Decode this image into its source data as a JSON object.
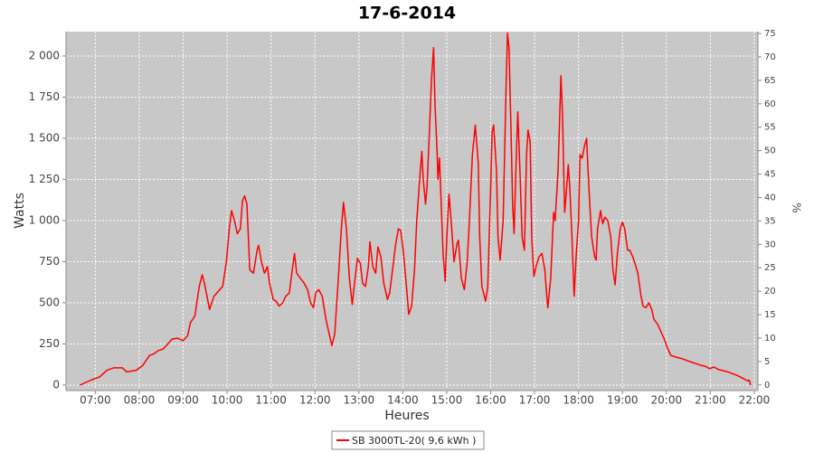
{
  "chart_data": {
    "type": "line",
    "title": "17-6-2014",
    "x_label": "Heures",
    "y_label": "Watts",
    "y2_label": "%",
    "x": [
      "06:39",
      "06:54",
      "07:06",
      "07:16",
      "07:25",
      "07:37",
      "07:43",
      "07:56",
      "08:05",
      "08:14",
      "08:20",
      "08:26",
      "08:33",
      "08:39",
      "08:45",
      "08:52",
      "09:00",
      "09:06",
      "09:10",
      "09:16",
      "09:22",
      "09:26",
      "09:29",
      "09:36",
      "09:42",
      "09:48",
      "09:54",
      "09:59",
      "10:03",
      "10:06",
      "10:10",
      "10:14",
      "10:18",
      "10:21",
      "10:24",
      "10:27",
      "10:31",
      "10:36",
      "10:41",
      "10:43",
      "10:47",
      "10:51",
      "10:55",
      "10:58",
      "11:03",
      "11:07",
      "11:11",
      "11:16",
      "11:20",
      "11:25",
      "11:29",
      "11:32",
      "11:35",
      "11:40",
      "11:45",
      "11:50",
      "11:54",
      "11:58",
      "12:01",
      "12:05",
      "12:10",
      "12:15",
      "12:20",
      "12:23",
      "12:27",
      "12:32",
      "12:36",
      "12:39",
      "12:43",
      "12:47",
      "12:51",
      "12:54",
      "12:58",
      "13:02",
      "13:05",
      "13:09",
      "13:13",
      "13:15",
      "13:19",
      "13:23",
      "13:26",
      "13:30",
      "13:34",
      "13:39",
      "13:42",
      "13:46",
      "13:50",
      "13:54",
      "13:57",
      "14:01",
      "14:05",
      "14:08",
      "14:12",
      "14:16",
      "14:19",
      "14:23",
      "14:26",
      "14:28",
      "14:31",
      "14:33",
      "14:36",
      "14:39",
      "14:42",
      "14:44",
      "14:47",
      "14:48",
      "14:50",
      "14:52",
      "14:55",
      "14:58",
      "15:00",
      "15:03",
      "15:06",
      "15:10",
      "15:14",
      "15:16",
      "15:20",
      "15:24",
      "15:28",
      "15:31",
      "15:35",
      "15:39",
      "15:43",
      "15:45",
      "15:48",
      "15:53",
      "15:56",
      "16:00",
      "16:02",
      "16:04",
      "16:08",
      "16:10",
      "16:13",
      "16:17",
      "16:21",
      "16:23",
      "16:25",
      "16:28",
      "16:30",
      "16:32",
      "16:35",
      "16:37",
      "16:40",
      "16:43",
      "16:46",
      "16:49",
      "16:51",
      "16:54",
      "16:56",
      "16:59",
      "17:02",
      "17:06",
      "17:10",
      "17:14",
      "17:16",
      "17:18",
      "17:22",
      "17:26",
      "17:28",
      "17:32",
      "17:36",
      "17:38",
      "17:41",
      "17:43",
      "17:46",
      "17:48",
      "17:51",
      "17:54",
      "17:57",
      "18:00",
      "18:02",
      "18:05",
      "18:08",
      "18:11",
      "18:13",
      "18:16",
      "18:18",
      "18:22",
      "18:24",
      "18:26",
      "18:30",
      "18:33",
      "18:36",
      "18:40",
      "18:44",
      "18:47",
      "18:50",
      "18:53",
      "18:57",
      "19:00",
      "19:03",
      "19:07",
      "19:10",
      "19:14",
      "19:17",
      "19:21",
      "19:25",
      "19:28",
      "19:32",
      "19:36",
      "19:40",
      "19:43",
      "19:48",
      "19:53",
      "19:57",
      "20:01",
      "20:06",
      "20:13",
      "20:22",
      "20:34",
      "20:47",
      "20:53",
      "20:59",
      "21:05",
      "21:11",
      "21:24",
      "21:36",
      "21:45",
      "21:51",
      "21:53",
      "21:55"
    ],
    "series": [
      {
        "name": "SB 3000TL-20( 9,6 kWh )",
        "color": "#ff0000",
        "values": [
          0,
          30,
          50,
          90,
          105,
          105,
          80,
          90,
          120,
          180,
          190,
          210,
          220,
          250,
          280,
          285,
          270,
          300,
          380,
          420,
          600,
          670,
          620,
          460,
          540,
          570,
          600,
          750,
          950,
          1060,
          1000,
          920,
          950,
          1120,
          1150,
          1100,
          700,
          680,
          820,
          850,
          750,
          680,
          720,
          620,
          520,
          510,
          480,
          500,
          540,
          560,
          700,
          800,
          680,
          650,
          620,
          580,
          500,
          470,
          560,
          580,
          540,
          400,
          300,
          240,
          310,
          650,
          950,
          1110,
          950,
          650,
          490,
          620,
          770,
          740,
          620,
          600,
          720,
          870,
          720,
          680,
          840,
          780,
          620,
          520,
          560,
          700,
          850,
          950,
          940,
          800,
          600,
          430,
          480,
          700,
          1000,
          1250,
          1420,
          1250,
          1100,
          1200,
          1500,
          1850,
          2050,
          1700,
          1400,
          1250,
          1380,
          1150,
          800,
          630,
          900,
          1160,
          1000,
          750,
          860,
          880,
          650,
          580,
          750,
          1000,
          1400,
          1580,
          1350,
          900,
          600,
          510,
          600,
          1200,
          1540,
          1580,
          1300,
          900,
          760,
          1000,
          1800,
          2140,
          2050,
          1500,
          1100,
          920,
          1400,
          1660,
          1300,
          900,
          820,
          1400,
          1550,
          1480,
          900,
          660,
          720,
          780,
          800,
          700,
          580,
          470,
          650,
          1050,
          1000,
          1300,
          1880,
          1650,
          1050,
          1150,
          1340,
          1200,
          900,
          540,
          800,
          1000,
          1400,
          1380,
          1450,
          1500,
          1300,
          1050,
          900,
          780,
          760,
          950,
          1060,
          980,
          1020,
          1000,
          900,
          700,
          610,
          800,
          950,
          990,
          950,
          820,
          820,
          780,
          740,
          680,
          550,
          480,
          470,
          500,
          460,
          400,
          370,
          320,
          280,
          230,
          180,
          170,
          160,
          140,
          120,
          115,
          100,
          110,
          95,
          80,
          60,
          40,
          25,
          30,
          0
        ]
      }
    ],
    "xlim": [
      "06:20",
      "22:05"
    ],
    "xticks": [
      "07:00",
      "08:00",
      "09:00",
      "10:00",
      "11:00",
      "12:00",
      "13:00",
      "14:00",
      "15:00",
      "16:00",
      "17:00",
      "18:00",
      "19:00",
      "20:00",
      "21:00",
      "22:00"
    ],
    "ylim": [
      -33,
      2148
    ],
    "yticks": [
      0,
      250,
      500,
      750,
      {
        "value": 1000,
        "label": "1 000"
      },
      {
        "value": 1250,
        "label": "1 250"
      },
      {
        "value": 1500,
        "label": "1 500"
      },
      {
        "value": 1750,
        "label": "1 750"
      },
      {
        "value": 2000,
        "label": "2 000"
      }
    ],
    "y2lim": [
      -1.2,
      75.4
    ],
    "y2ticks": [
      0,
      5,
      10,
      15,
      20,
      25,
      30,
      35,
      40,
      45,
      50,
      55,
      60,
      65,
      70,
      75
    ],
    "grid": true,
    "legend": "bottom"
  }
}
